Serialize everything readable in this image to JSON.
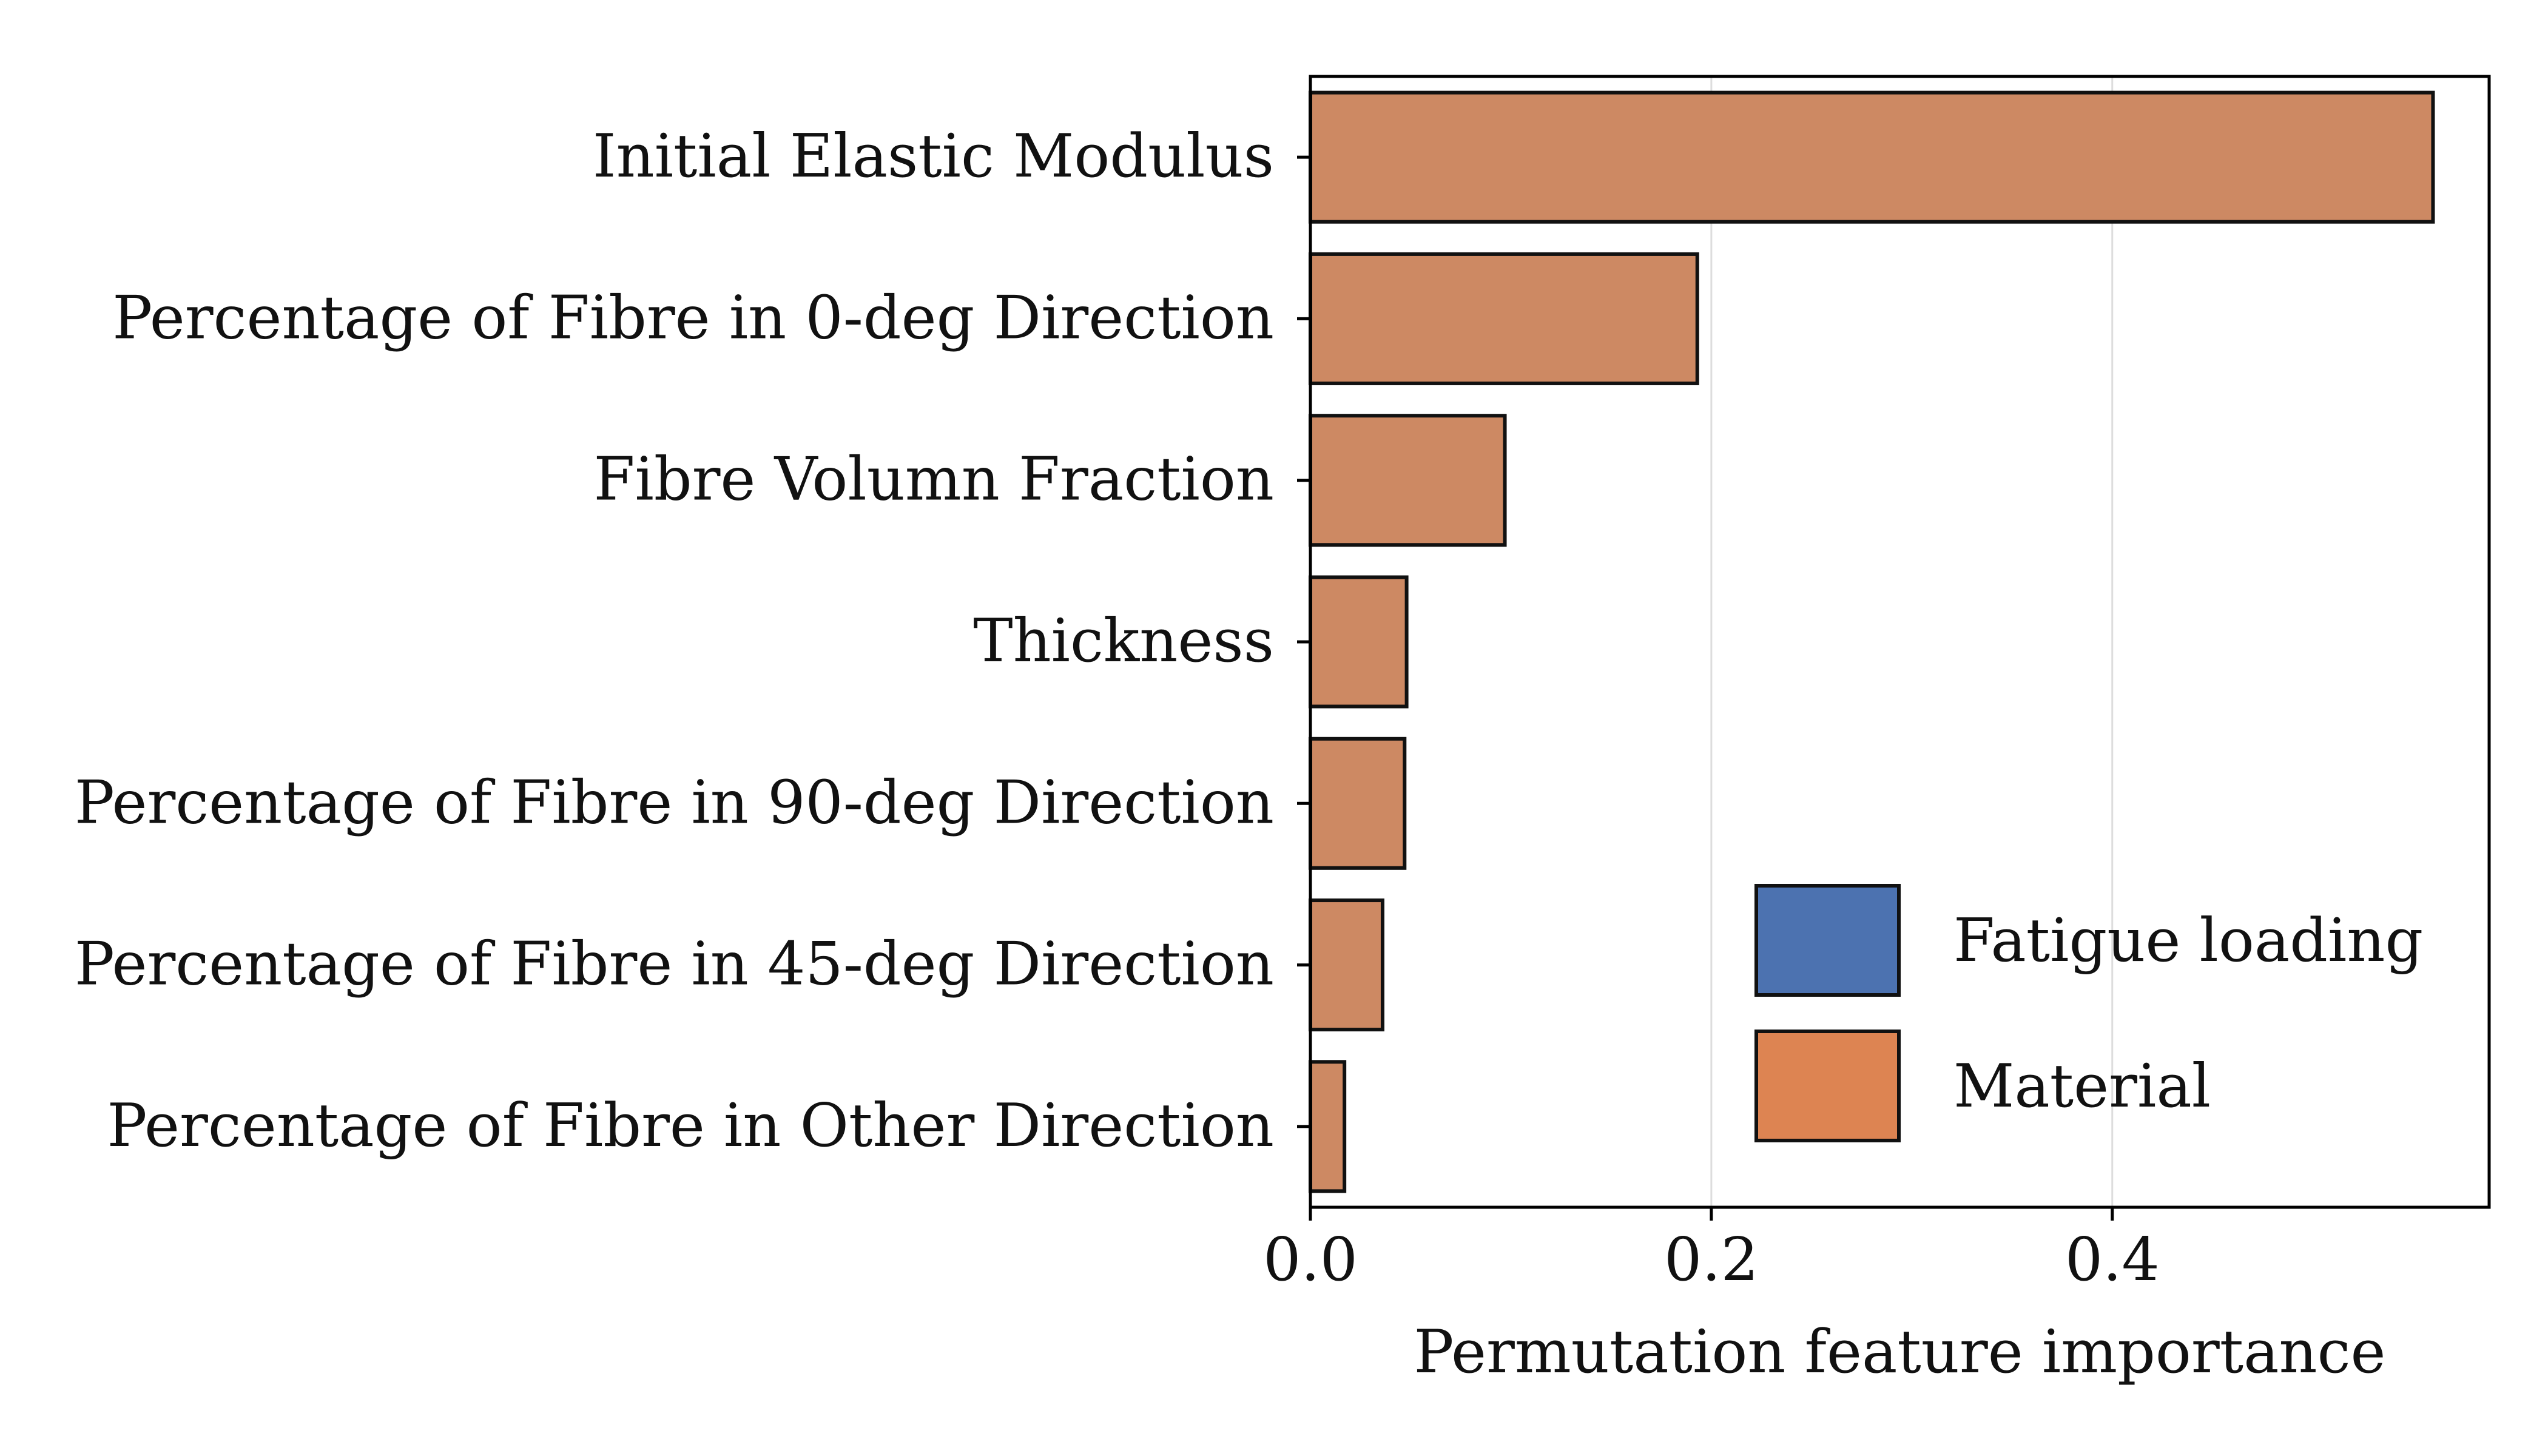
{
  "chart_data": {
    "type": "bar",
    "orientation": "horizontal",
    "categories": [
      "Initial Elastic Modulus",
      "Percentage of Fibre in 0-deg Direction",
      "Fibre Volumn Fraction",
      "Thickness",
      "Percentage of Fibre in 90-deg Direction",
      "Percentage of Fibre in 45-deg Direction",
      "Percentage of Fibre in Other Direction"
    ],
    "series": [
      {
        "name": "Material",
        "color": "#cd8963",
        "values": [
          0.56,
          0.193,
          0.097,
          0.048,
          0.047,
          0.036,
          0.017
        ]
      }
    ],
    "title": "",
    "xlabel": "Permutation feature importance",
    "ylabel": "",
    "xlim": [
      0.0,
      0.588
    ],
    "xticks": [
      0.0,
      0.2,
      0.4
    ],
    "xtick_labels": [
      "0.0",
      "0.2",
      "0.4"
    ],
    "grid": "vertical",
    "legend": {
      "position": "lower-right",
      "entries": [
        {
          "label": "Fatigue loading",
          "color": "#4c72b0"
        },
        {
          "label": "Material",
          "color": "#dd8452"
        }
      ]
    }
  }
}
